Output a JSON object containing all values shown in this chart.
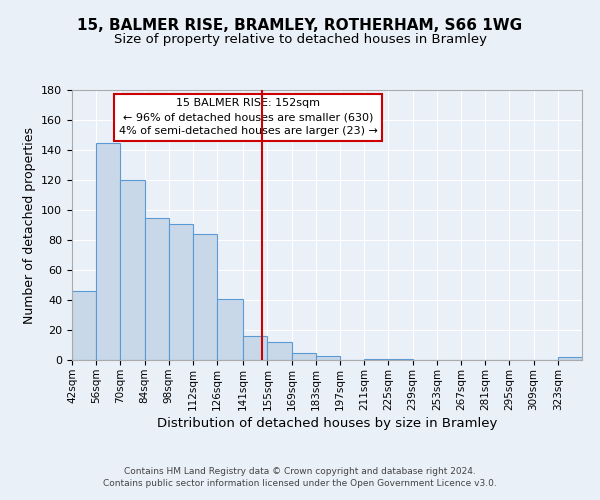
{
  "title": "15, BALMER RISE, BRAMLEY, ROTHERHAM, S66 1WG",
  "subtitle": "Size of property relative to detached houses in Bramley",
  "xlabel": "Distribution of detached houses by size in Bramley",
  "ylabel": "Number of detached properties",
  "footer_line1": "Contains HM Land Registry data © Crown copyright and database right 2024.",
  "footer_line2": "Contains public sector information licensed under the Open Government Licence v3.0.",
  "bin_labels": [
    "42sqm",
    "56sqm",
    "70sqm",
    "84sqm",
    "98sqm",
    "112sqm",
    "126sqm",
    "141sqm",
    "155sqm",
    "169sqm",
    "183sqm",
    "197sqm",
    "211sqm",
    "225sqm",
    "239sqm",
    "253sqm",
    "267sqm",
    "281sqm",
    "295sqm",
    "309sqm",
    "323sqm"
  ],
  "bar_heights": [
    46,
    145,
    120,
    95,
    91,
    84,
    41,
    16,
    12,
    5,
    3,
    0,
    1,
    1,
    0,
    0,
    0,
    0,
    0,
    0,
    2
  ],
  "bin_edges": [
    42,
    56,
    70,
    84,
    98,
    112,
    126,
    141,
    155,
    169,
    183,
    197,
    211,
    225,
    239,
    253,
    267,
    281,
    295,
    309,
    323,
    337
  ],
  "bar_color": "#c8d8e8",
  "bar_edge_color": "#5b9bd5",
  "vline_x": 152,
  "vline_color": "#cc0000",
  "annotation_line1": "15 BALMER RISE: 152sqm",
  "annotation_line2": "← 96% of detached houses are smaller (630)",
  "annotation_line3": "4% of semi-detached houses are larger (23) →",
  "annotation_box_color": "#cc0000",
  "ylim": [
    0,
    180
  ],
  "yticks": [
    0,
    20,
    40,
    60,
    80,
    100,
    120,
    140,
    160,
    180
  ],
  "background_color": "#eaf0f8",
  "grid_color": "#ffffff",
  "title_fontsize": 11,
  "subtitle_fontsize": 9.5,
  "ylabel_fontsize": 9,
  "xlabel_fontsize": 9.5,
  "tick_fontsize": 7.5,
  "footer_fontsize": 6.5
}
